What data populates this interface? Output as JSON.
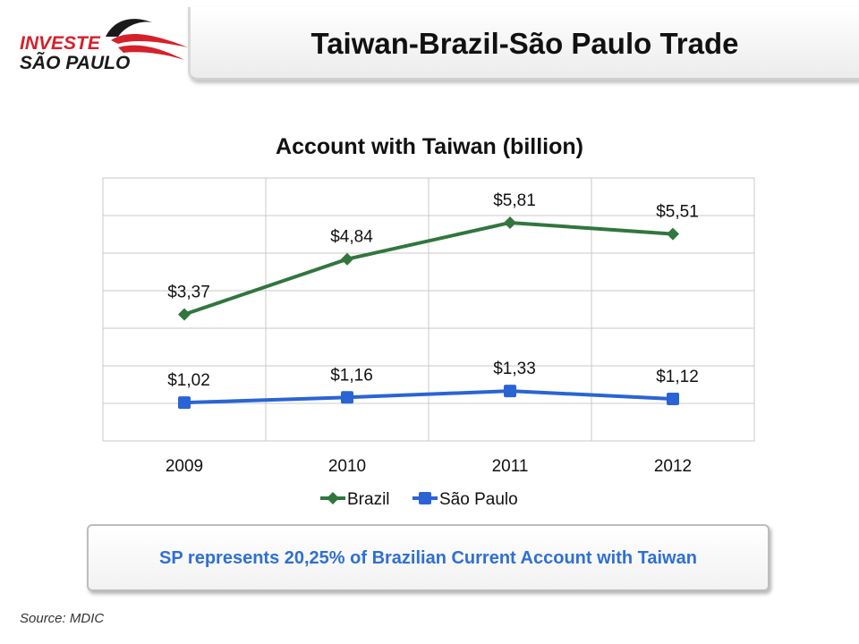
{
  "header": {
    "logo_line1": "INVESTE",
    "logo_line2": "SÃO PAULO",
    "title": "Taiwan-Brazil-São Paulo Trade"
  },
  "chart_data": {
    "type": "line",
    "title": "Account with Taiwan (billion)",
    "categories": [
      "2009",
      "2010",
      "2011",
      "2012"
    ],
    "series": [
      {
        "name": "Brazil",
        "values": [
          3.37,
          4.84,
          5.81,
          5.51
        ],
        "labels": [
          "$3,37",
          "$4,84",
          "$5,81",
          "$5,51"
        ],
        "color": "#31763e",
        "marker": "diamond"
      },
      {
        "name": "São Paulo",
        "values": [
          1.02,
          1.16,
          1.33,
          1.12
        ],
        "labels": [
          "$1,02",
          "$1,16",
          "$1,33",
          "$1,12"
        ],
        "color": "#2a64d4",
        "marker": "square"
      }
    ],
    "ylim": [
      0,
      7
    ],
    "grid": true,
    "legend": "bottom"
  },
  "callout": {
    "text": "SP represents 20,25% of Brazilian Current Account with Taiwan"
  },
  "source": "Source: MDIC",
  "colors": {
    "logo_red": "#d6202a",
    "logo_dark": "#1a1a1a",
    "callout_text": "#2f6fd3"
  }
}
